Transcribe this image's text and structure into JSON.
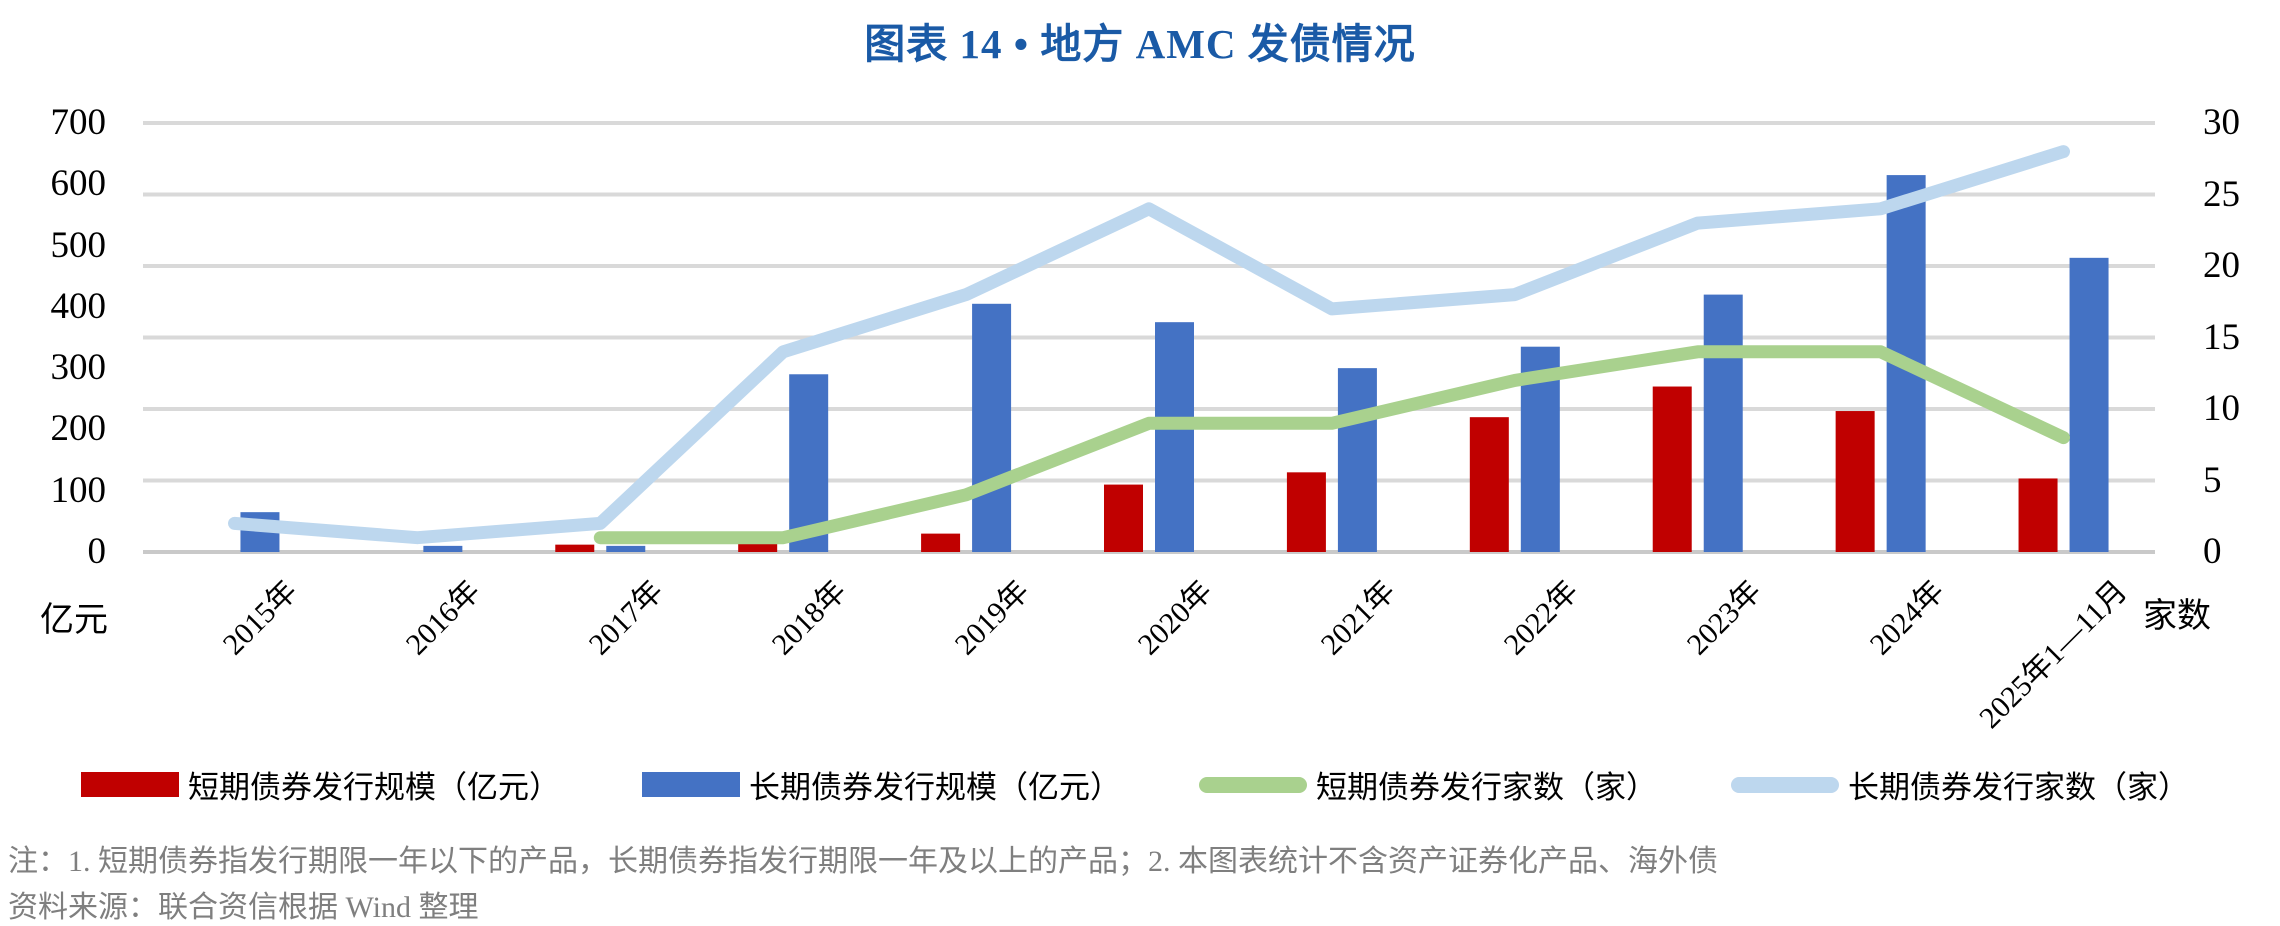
{
  "title": "图表 14 • 地方 AMC 发债情况",
  "title_color": "#1A5AA6",
  "chart_data": {
    "type": "combo (grouped bars + lines, dual axis)",
    "categories": [
      "2015年",
      "2016年",
      "2017年",
      "2018年",
      "2019年",
      "2020年",
      "2021年",
      "2022年",
      "2023年",
      "2024年",
      "2025年1—11月"
    ],
    "series": [
      {
        "name": "短期债券发行规模（亿元）",
        "type": "bar",
        "axis": "left",
        "color": "#C00000",
        "values": [
          0,
          0,
          12,
          30,
          30,
          110,
          130,
          220,
          270,
          230,
          120
        ]
      },
      {
        "name": "长期债券发行规模（亿元）",
        "type": "bar",
        "axis": "left",
        "color": "#4472C4",
        "values": [
          65,
          10,
          10,
          290,
          405,
          375,
          300,
          335,
          420,
          615,
          480
        ]
      },
      {
        "name": "短期债券发行家数（家）",
        "type": "line",
        "axis": "right",
        "color": "#A9D18E",
        "values": [
          null,
          null,
          1,
          1,
          4,
          9,
          9,
          12,
          14,
          14,
          8
        ]
      },
      {
        "name": "长期债券发行家数（家）",
        "type": "line",
        "axis": "right",
        "color": "#BDD7EE",
        "values": [
          2,
          1,
          2,
          14,
          18,
          24,
          17,
          18,
          23,
          24,
          28
        ]
      }
    ],
    "left_axis": {
      "label": "亿元",
      "min": 0,
      "max": 700,
      "step": 100,
      "ticks": [
        "0",
        "100",
        "200",
        "300",
        "400",
        "500",
        "600",
        "700"
      ]
    },
    "right_axis": {
      "label": "家数",
      "min": 0,
      "max": 30,
      "step": 5,
      "ticks": [
        "0",
        "5",
        "10",
        "15",
        "20",
        "25",
        "30"
      ]
    },
    "grid": {
      "horizontal": true,
      "aligned_to": "right_axis",
      "color": "#D9D9D9"
    },
    "legend_position": "bottom"
  },
  "notes": [
    "注：1. 短期债券指发行期限一年以下的产品，长期债券指发行期限一年及以上的产品；2. 本图表统计不含资产证券化产品、海外债",
    "资料来源：联合资信根据 Wind 整理"
  ]
}
